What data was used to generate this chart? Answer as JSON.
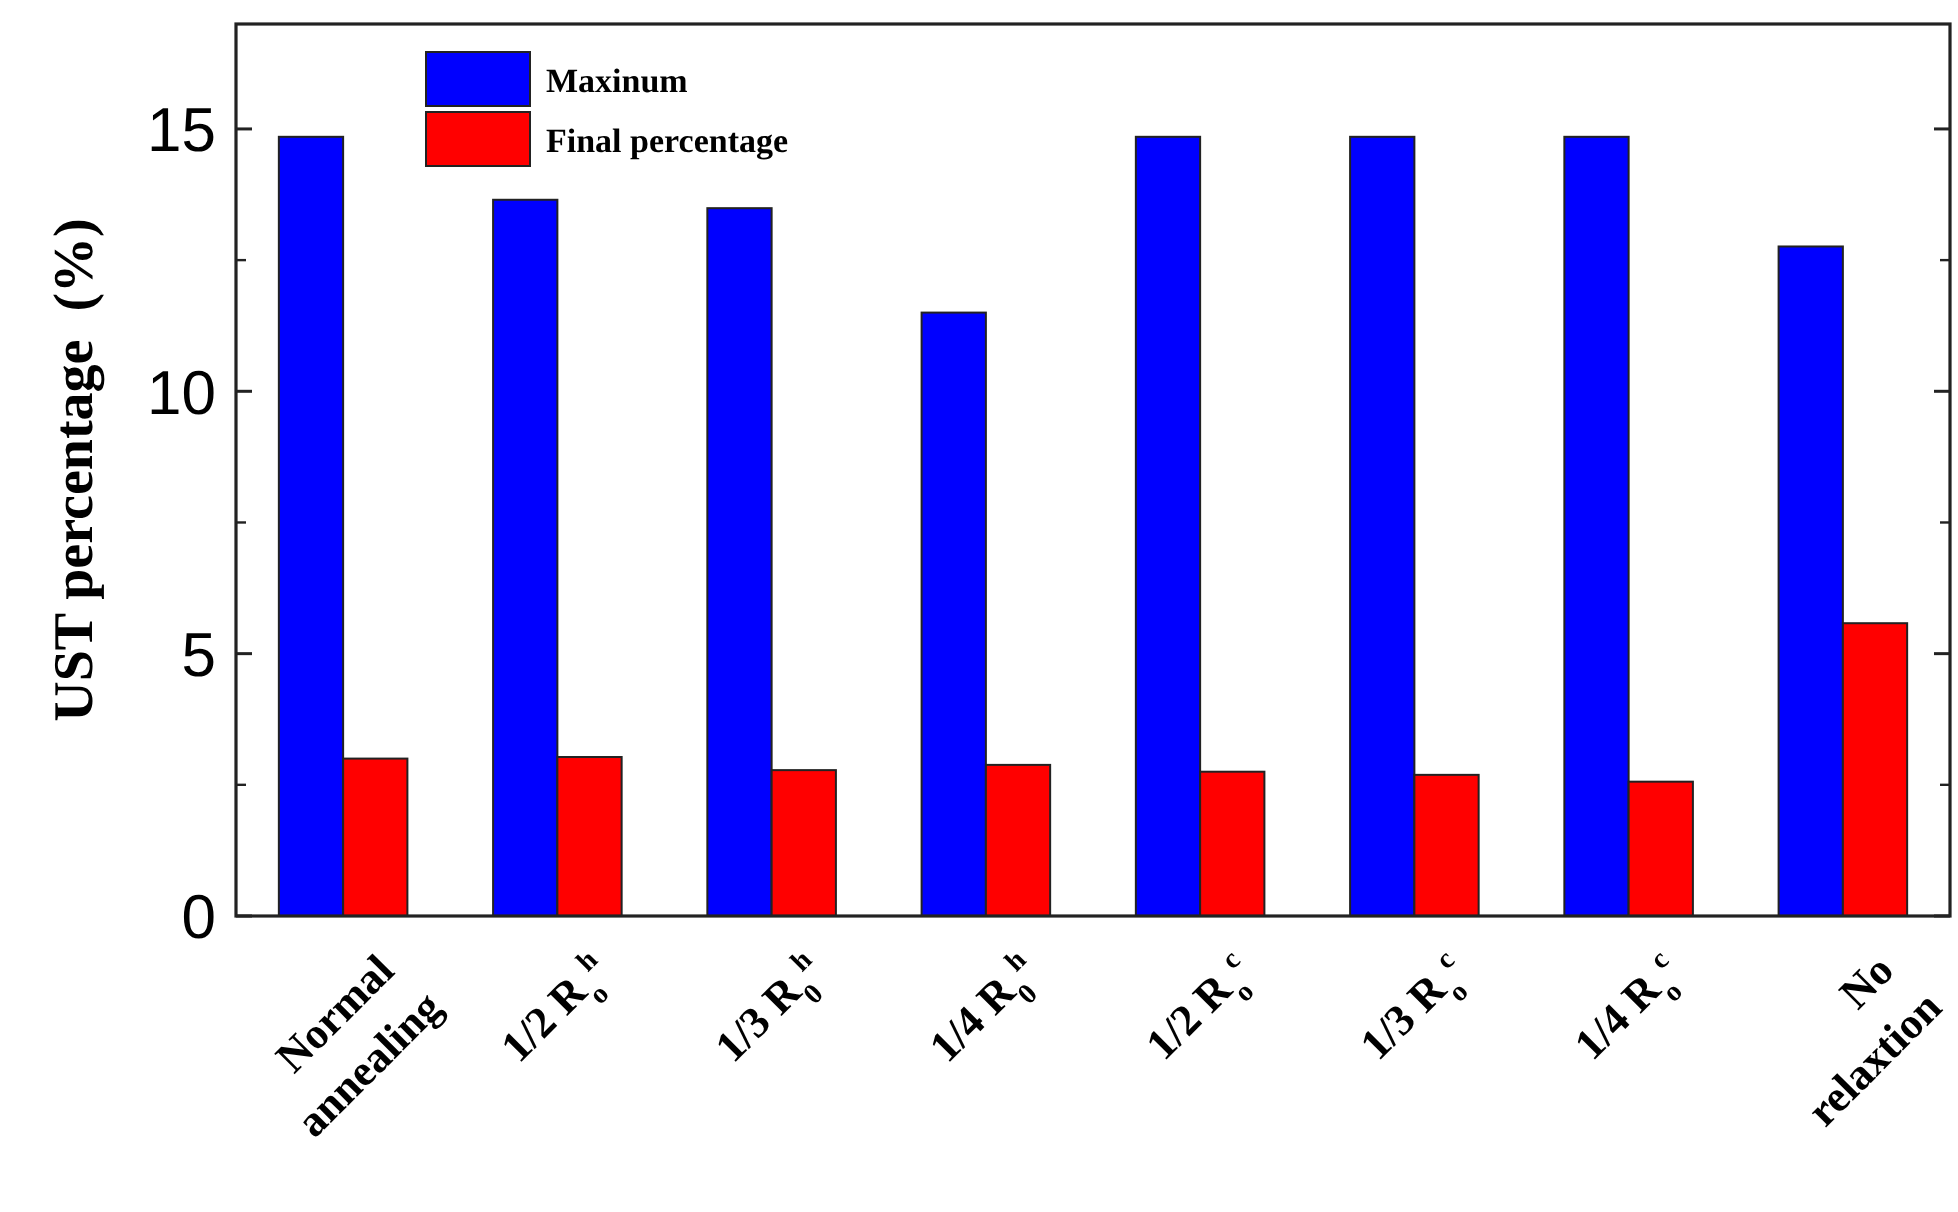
{
  "chart_data": {
    "type": "bar",
    "ylabel": "UST percentage  (%)",
    "categories": [
      "Normal\nannealing",
      "1/2 R$_{o}$$^{h}$",
      "1/3 R$_{0}$$^{h}$",
      "1/4 R$_{0}$$^{h}$",
      "1/2 R$_{o}$$^{c}$",
      "1/3 R$_{o}$$^{c}$",
      "1/4 R$_{o}$$^{c}$",
      "No\nrelaxtion"
    ],
    "series": [
      {
        "name": "Maxinum",
        "color": "#0000ff",
        "values": [
          14.85,
          13.65,
          13.49,
          11.5,
          14.85,
          14.85,
          14.85,
          12.76
        ]
      },
      {
        "name": "Final percentage",
        "color": "#ff0000",
        "values": [
          3.0,
          3.03,
          2.78,
          2.88,
          2.75,
          2.69,
          2.56,
          5.58
        ]
      }
    ],
    "ylim": [
      0,
      17
    ],
    "yticks": [
      0,
      5,
      10,
      15
    ],
    "grid": false,
    "legend": "top left"
  }
}
